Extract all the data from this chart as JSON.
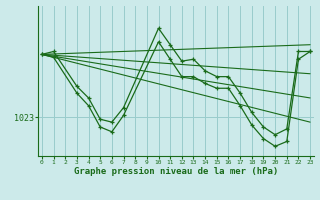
{
  "background_color": "#cceaea",
  "plot_bg_color": "#cceaea",
  "grid_color": "#99cccc",
  "line_color": "#1a6b1a",
  "xlabel": "Graphe pression niveau de la mer (hPa)",
  "xlabel_fontsize": 6.5,
  "ytick_label": "1023",
  "ytick_value": 1023,
  "xlim": [
    -0.3,
    23.3
  ],
  "ylim": [
    1019.0,
    1034.5
  ],
  "series1_x": [
    0,
    1,
    3,
    4,
    5,
    6,
    7,
    10,
    11,
    12,
    13,
    14,
    15,
    16,
    17,
    18,
    19,
    20,
    21,
    22,
    23
  ],
  "series1_y": [
    1029.5,
    1029.8,
    1026.2,
    1025.0,
    1022.8,
    1022.5,
    1024.0,
    1032.2,
    1030.5,
    1028.8,
    1029.0,
    1027.8,
    1027.2,
    1027.2,
    1025.5,
    1023.5,
    1022.0,
    1021.2,
    1021.8,
    1029.8,
    1029.8
  ],
  "series2_x": [
    0,
    1,
    3,
    4,
    5,
    6,
    7,
    10,
    11,
    12,
    13,
    14,
    15,
    16,
    17,
    18,
    19,
    20,
    21,
    22,
    23
  ],
  "series2_y": [
    1029.5,
    1029.2,
    1025.5,
    1024.2,
    1022.0,
    1021.5,
    1023.2,
    1030.8,
    1029.0,
    1027.2,
    1027.2,
    1026.5,
    1026.0,
    1026.0,
    1024.2,
    1022.2,
    1020.8,
    1020.0,
    1020.5,
    1029.0,
    1029.8
  ],
  "fan_lines": [
    {
      "x": [
        0,
        23
      ],
      "y": [
        1029.5,
        1030.5
      ]
    },
    {
      "x": [
        0,
        23
      ],
      "y": [
        1029.5,
        1027.5
      ]
    },
    {
      "x": [
        0,
        23
      ],
      "y": [
        1029.5,
        1025.0
      ]
    },
    {
      "x": [
        0,
        23
      ],
      "y": [
        1029.5,
        1022.5
      ]
    }
  ]
}
